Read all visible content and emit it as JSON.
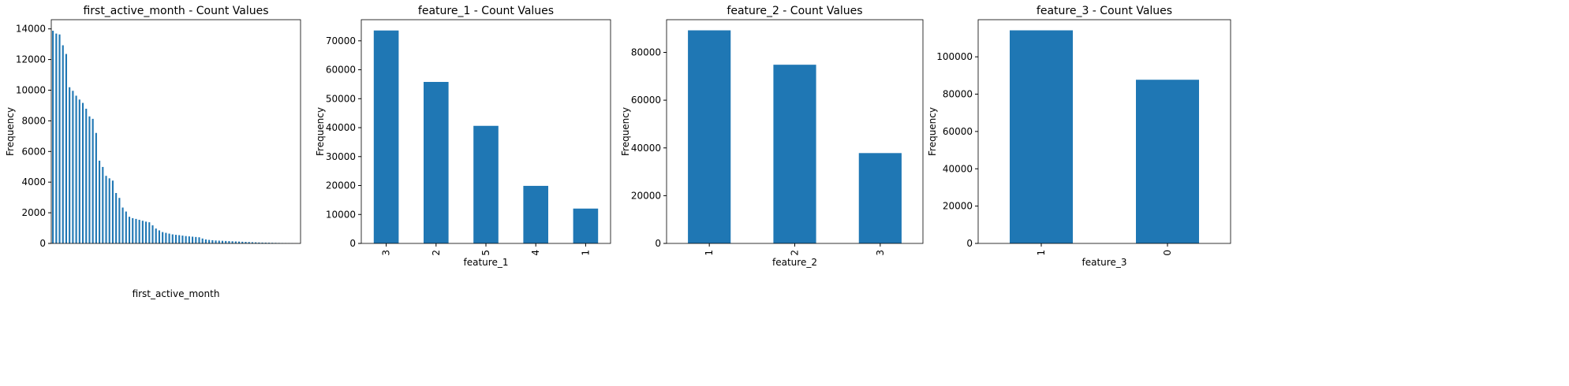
{
  "chart_data": [
    {
      "type": "bar",
      "title": "first_active_month - Count Values",
      "xlabel": "first_active_month",
      "ylabel": "Frequency",
      "color": "#1f77b4",
      "categories": [
        null,
        null,
        null,
        null,
        null,
        null,
        null,
        null,
        null,
        null,
        null,
        null,
        null,
        null,
        null,
        null,
        null,
        null,
        null,
        null,
        null,
        null,
        null,
        null,
        null,
        null,
        null,
        null,
        null,
        null,
        null,
        null,
        null,
        null,
        null,
        null,
        null,
        null,
        null,
        null,
        null,
        null,
        null,
        null,
        null,
        null,
        null,
        null,
        null,
        null,
        null,
        null,
        null,
        null,
        null,
        null,
        null,
        null,
        null,
        null,
        null,
        null,
        null,
        null,
        null,
        null,
        null,
        null,
        null,
        null,
        null,
        null,
        null,
        null,
        null
      ],
      "values": [
        13878,
        13695,
        13638,
        12930,
        12363,
        10192,
        9960,
        9640,
        9390,
        9170,
        8790,
        8290,
        8130,
        7210,
        5400,
        4990,
        4410,
        4250,
        4100,
        3290,
        2970,
        2340,
        2080,
        1740,
        1650,
        1600,
        1540,
        1480,
        1420,
        1380,
        1180,
        970,
        850,
        740,
        690,
        640,
        590,
        560,
        540,
        510,
        480,
        460,
        440,
        420,
        400,
        320,
        260,
        230,
        210,
        190,
        180,
        170,
        160,
        150,
        140,
        130,
        120,
        110,
        100,
        90,
        80,
        70,
        60,
        55,
        50,
        45,
        40,
        35,
        30,
        25,
        20,
        15,
        10,
        5,
        1
      ],
      "ylim": [
        0,
        14600
      ],
      "yticks": [
        0,
        2000,
        4000,
        6000,
        8000,
        10000,
        12000,
        14000
      ]
    },
    {
      "type": "bar",
      "title": "feature_1 - Count Values",
      "xlabel": "feature_1",
      "ylabel": "Frequency",
      "color": "#1f77b4",
      "categories": [
        "3",
        "2",
        "5",
        "4",
        "1"
      ],
      "values": [
        73573,
        55797,
        40625,
        19885,
        12037
      ],
      "ylim": [
        0,
        77300
      ],
      "yticks": [
        0,
        10000,
        20000,
        30000,
        40000,
        50000,
        60000,
        70000
      ]
    },
    {
      "type": "bar",
      "title": "feature_2 - Count Values",
      "xlabel": "feature_2",
      "ylabel": "Frequency",
      "color": "#1f77b4",
      "categories": [
        "1",
        "2",
        "3"
      ],
      "values": [
        89242,
        74839,
        37836
      ],
      "ylim": [
        0,
        93700
      ],
      "yticks": [
        0,
        20000,
        40000,
        60000,
        80000
      ]
    },
    {
      "type": "bar",
      "title": "feature_3 - Count Values",
      "xlabel": "feature_3",
      "ylabel": "Frequency",
      "color": "#1f77b4",
      "categories": [
        "1",
        "0"
      ],
      "values": [
        114198,
        87719
      ],
      "ylim": [
        0,
        119900
      ],
      "yticks": [
        0,
        20000,
        40000,
        60000,
        80000,
        100000
      ]
    }
  ]
}
